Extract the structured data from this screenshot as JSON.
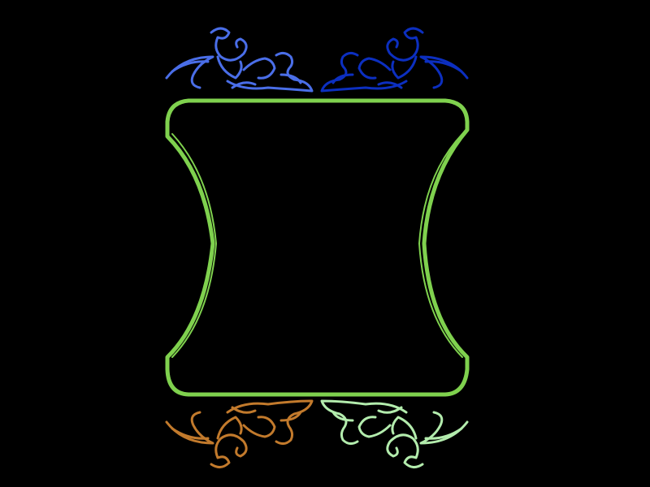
{
  "canvas": {
    "background": "#000000"
  },
  "frame": {
    "color": "#7fd14e",
    "shape": "concave-sided rounded panel"
  },
  "ornaments": {
    "top_left": {
      "color": "#4a6ee8",
      "shape": "flourish"
    },
    "top_right": {
      "color": "#0c2fc0",
      "shape": "flourish"
    },
    "bottom_left": {
      "color": "#c27a2c",
      "shape": "flourish"
    },
    "bottom_right": {
      "color": "#b3ecad",
      "shape": "flourish"
    }
  }
}
